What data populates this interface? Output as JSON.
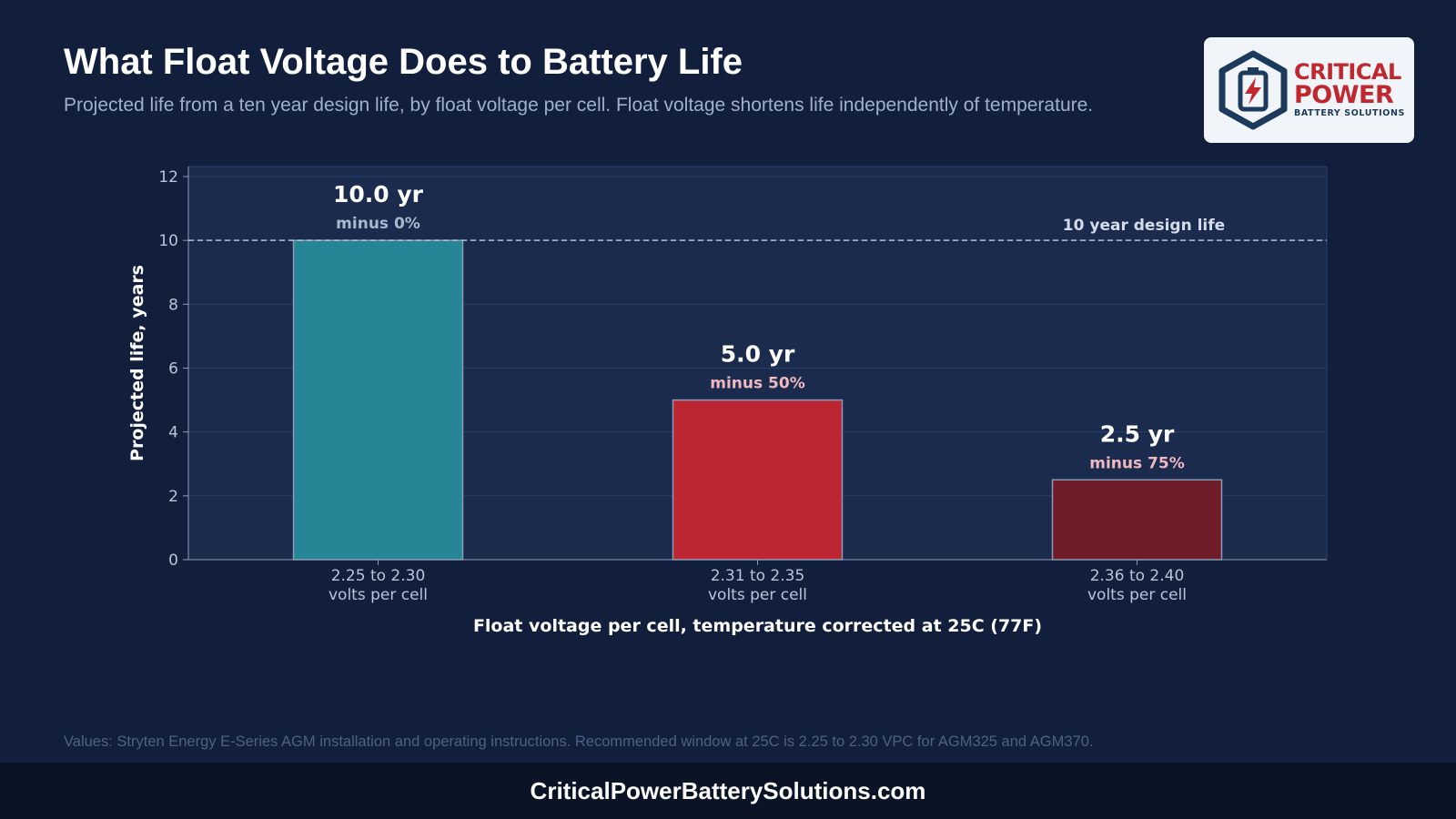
{
  "header": {
    "title": "What Float Voltage Does to Battery Life",
    "subtitle": "Projected life from a ten year design life, by float voltage per cell. Float voltage shortens life independently of temperature."
  },
  "logo": {
    "line1": "CRITICAL",
    "line2": "POWER",
    "line3": "BATTERY SOLUTIONS",
    "icon": "battery-bolt-hexagon-icon"
  },
  "chart_data": {
    "type": "bar",
    "categories": [
      [
        "2.25 to 2.30",
        "volts per cell"
      ],
      [
        "2.31 to 2.35",
        "volts per cell"
      ],
      [
        "2.36 to 2.40",
        "volts per cell"
      ]
    ],
    "values": [
      10.0,
      5.0,
      2.5
    ],
    "value_labels": [
      "10.0 yr",
      "5.0 yr",
      "2.5 yr"
    ],
    "change_labels": [
      "minus 0%",
      "minus 50%",
      "minus 75%"
    ],
    "bar_colors": [
      "#278695",
      "#be2532",
      "#6e1c28"
    ],
    "change_label_colors": [
      "#aab8cf",
      "#f0b8c0",
      "#f0b8c0"
    ],
    "xlabel": "Float voltage per cell, temperature corrected at 25C (77F)",
    "ylabel": "Projected life, years",
    "ylim": [
      0,
      12
    ],
    "yticks": [
      0,
      2,
      4,
      6,
      8,
      10,
      12
    ],
    "grid": true,
    "reference_line": {
      "value": 10,
      "label": "10 year design life",
      "style": "dashed"
    }
  },
  "colors": {
    "background": "#111f3d",
    "plot_area": "#1a2b4e",
    "accent_red": "#c0272f",
    "logo_navy": "#1b3a5c"
  },
  "footer": {
    "source_note": "Values: Stryten Energy E-Series AGM installation and operating instructions. Recommended window at 25C is 2.25 to 2.30 VPC for AGM325 and AGM370.",
    "url": "CriticalPowerBatterySolutions.com"
  }
}
